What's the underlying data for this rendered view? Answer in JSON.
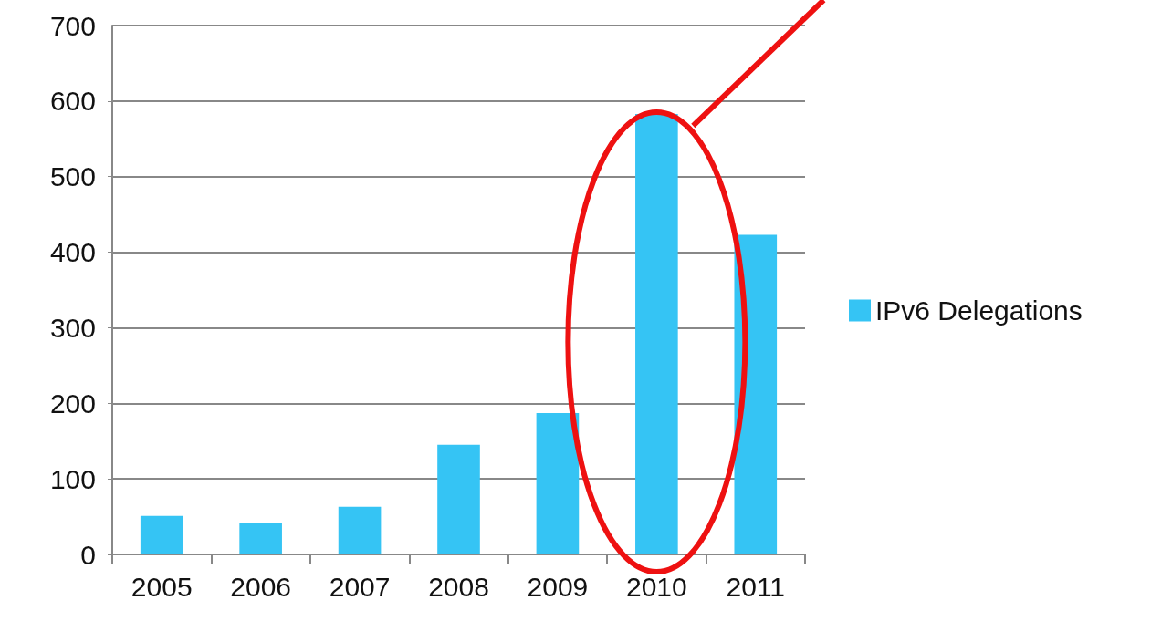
{
  "chart_data": {
    "type": "bar",
    "categories": [
      "2005",
      "2006",
      "2007",
      "2008",
      "2009",
      "2010",
      "2011"
    ],
    "series": [
      {
        "name": "IPv6 Delegations",
        "color": "#35c4f4",
        "values": [
          51,
          41,
          63,
          145,
          187,
          583,
          423
        ]
      }
    ],
    "ylim": [
      0,
      700
    ],
    "yticks": [
      0,
      100,
      200,
      300,
      400,
      500,
      600,
      700
    ],
    "grid": "y",
    "legend": "right"
  }
}
